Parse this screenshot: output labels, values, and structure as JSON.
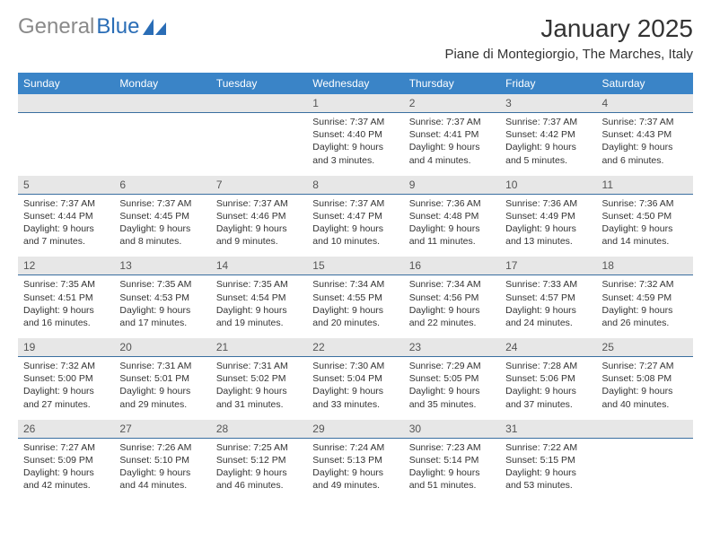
{
  "logo": {
    "gray": "General",
    "blue": "Blue"
  },
  "title": "January 2025",
  "location": "Piane di Montegiorgio, The Marches, Italy",
  "theme": {
    "header_bg": "#3a84c7",
    "header_fg": "#ffffff",
    "daynum_bg": "#e7e7e7",
    "daynum_border": "#3a6fa0",
    "text_color": "#333333",
    "logo_gray": "#8a8a8a",
    "logo_blue": "#2a6db6",
    "title_fontsize": 28,
    "location_fontsize": 15,
    "dayhead_fontsize": 12,
    "body_fontsize": 10.5
  },
  "day_headers": [
    "Sunday",
    "Monday",
    "Tuesday",
    "Wednesday",
    "Thursday",
    "Friday",
    "Saturday"
  ],
  "weeks": [
    {
      "nums": [
        "",
        "",
        "",
        "1",
        "2",
        "3",
        "4"
      ],
      "cells": [
        {},
        {},
        {},
        {
          "sunrise": "Sunrise: 7:37 AM",
          "sunset": "Sunset: 4:40 PM",
          "day1": "Daylight: 9 hours",
          "day2": "and 3 minutes."
        },
        {
          "sunrise": "Sunrise: 7:37 AM",
          "sunset": "Sunset: 4:41 PM",
          "day1": "Daylight: 9 hours",
          "day2": "and 4 minutes."
        },
        {
          "sunrise": "Sunrise: 7:37 AM",
          "sunset": "Sunset: 4:42 PM",
          "day1": "Daylight: 9 hours",
          "day2": "and 5 minutes."
        },
        {
          "sunrise": "Sunrise: 7:37 AM",
          "sunset": "Sunset: 4:43 PM",
          "day1": "Daylight: 9 hours",
          "day2": "and 6 minutes."
        }
      ]
    },
    {
      "nums": [
        "5",
        "6",
        "7",
        "8",
        "9",
        "10",
        "11"
      ],
      "cells": [
        {
          "sunrise": "Sunrise: 7:37 AM",
          "sunset": "Sunset: 4:44 PM",
          "day1": "Daylight: 9 hours",
          "day2": "and 7 minutes."
        },
        {
          "sunrise": "Sunrise: 7:37 AM",
          "sunset": "Sunset: 4:45 PM",
          "day1": "Daylight: 9 hours",
          "day2": "and 8 minutes."
        },
        {
          "sunrise": "Sunrise: 7:37 AM",
          "sunset": "Sunset: 4:46 PM",
          "day1": "Daylight: 9 hours",
          "day2": "and 9 minutes."
        },
        {
          "sunrise": "Sunrise: 7:37 AM",
          "sunset": "Sunset: 4:47 PM",
          "day1": "Daylight: 9 hours",
          "day2": "and 10 minutes."
        },
        {
          "sunrise": "Sunrise: 7:36 AM",
          "sunset": "Sunset: 4:48 PM",
          "day1": "Daylight: 9 hours",
          "day2": "and 11 minutes."
        },
        {
          "sunrise": "Sunrise: 7:36 AM",
          "sunset": "Sunset: 4:49 PM",
          "day1": "Daylight: 9 hours",
          "day2": "and 13 minutes."
        },
        {
          "sunrise": "Sunrise: 7:36 AM",
          "sunset": "Sunset: 4:50 PM",
          "day1": "Daylight: 9 hours",
          "day2": "and 14 minutes."
        }
      ]
    },
    {
      "nums": [
        "12",
        "13",
        "14",
        "15",
        "16",
        "17",
        "18"
      ],
      "cells": [
        {
          "sunrise": "Sunrise: 7:35 AM",
          "sunset": "Sunset: 4:51 PM",
          "day1": "Daylight: 9 hours",
          "day2": "and 16 minutes."
        },
        {
          "sunrise": "Sunrise: 7:35 AM",
          "sunset": "Sunset: 4:53 PM",
          "day1": "Daylight: 9 hours",
          "day2": "and 17 minutes."
        },
        {
          "sunrise": "Sunrise: 7:35 AM",
          "sunset": "Sunset: 4:54 PM",
          "day1": "Daylight: 9 hours",
          "day2": "and 19 minutes."
        },
        {
          "sunrise": "Sunrise: 7:34 AM",
          "sunset": "Sunset: 4:55 PM",
          "day1": "Daylight: 9 hours",
          "day2": "and 20 minutes."
        },
        {
          "sunrise": "Sunrise: 7:34 AM",
          "sunset": "Sunset: 4:56 PM",
          "day1": "Daylight: 9 hours",
          "day2": "and 22 minutes."
        },
        {
          "sunrise": "Sunrise: 7:33 AM",
          "sunset": "Sunset: 4:57 PM",
          "day1": "Daylight: 9 hours",
          "day2": "and 24 minutes."
        },
        {
          "sunrise": "Sunrise: 7:32 AM",
          "sunset": "Sunset: 4:59 PM",
          "day1": "Daylight: 9 hours",
          "day2": "and 26 minutes."
        }
      ]
    },
    {
      "nums": [
        "19",
        "20",
        "21",
        "22",
        "23",
        "24",
        "25"
      ],
      "cells": [
        {
          "sunrise": "Sunrise: 7:32 AM",
          "sunset": "Sunset: 5:00 PM",
          "day1": "Daylight: 9 hours",
          "day2": "and 27 minutes."
        },
        {
          "sunrise": "Sunrise: 7:31 AM",
          "sunset": "Sunset: 5:01 PM",
          "day1": "Daylight: 9 hours",
          "day2": "and 29 minutes."
        },
        {
          "sunrise": "Sunrise: 7:31 AM",
          "sunset": "Sunset: 5:02 PM",
          "day1": "Daylight: 9 hours",
          "day2": "and 31 minutes."
        },
        {
          "sunrise": "Sunrise: 7:30 AM",
          "sunset": "Sunset: 5:04 PM",
          "day1": "Daylight: 9 hours",
          "day2": "and 33 minutes."
        },
        {
          "sunrise": "Sunrise: 7:29 AM",
          "sunset": "Sunset: 5:05 PM",
          "day1": "Daylight: 9 hours",
          "day2": "and 35 minutes."
        },
        {
          "sunrise": "Sunrise: 7:28 AM",
          "sunset": "Sunset: 5:06 PM",
          "day1": "Daylight: 9 hours",
          "day2": "and 37 minutes."
        },
        {
          "sunrise": "Sunrise: 7:27 AM",
          "sunset": "Sunset: 5:08 PM",
          "day1": "Daylight: 9 hours",
          "day2": "and 40 minutes."
        }
      ]
    },
    {
      "nums": [
        "26",
        "27",
        "28",
        "29",
        "30",
        "31",
        ""
      ],
      "cells": [
        {
          "sunrise": "Sunrise: 7:27 AM",
          "sunset": "Sunset: 5:09 PM",
          "day1": "Daylight: 9 hours",
          "day2": "and 42 minutes."
        },
        {
          "sunrise": "Sunrise: 7:26 AM",
          "sunset": "Sunset: 5:10 PM",
          "day1": "Daylight: 9 hours",
          "day2": "and 44 minutes."
        },
        {
          "sunrise": "Sunrise: 7:25 AM",
          "sunset": "Sunset: 5:12 PM",
          "day1": "Daylight: 9 hours",
          "day2": "and 46 minutes."
        },
        {
          "sunrise": "Sunrise: 7:24 AM",
          "sunset": "Sunset: 5:13 PM",
          "day1": "Daylight: 9 hours",
          "day2": "and 49 minutes."
        },
        {
          "sunrise": "Sunrise: 7:23 AM",
          "sunset": "Sunset: 5:14 PM",
          "day1": "Daylight: 9 hours",
          "day2": "and 51 minutes."
        },
        {
          "sunrise": "Sunrise: 7:22 AM",
          "sunset": "Sunset: 5:15 PM",
          "day1": "Daylight: 9 hours",
          "day2": "and 53 minutes."
        },
        {}
      ]
    }
  ]
}
